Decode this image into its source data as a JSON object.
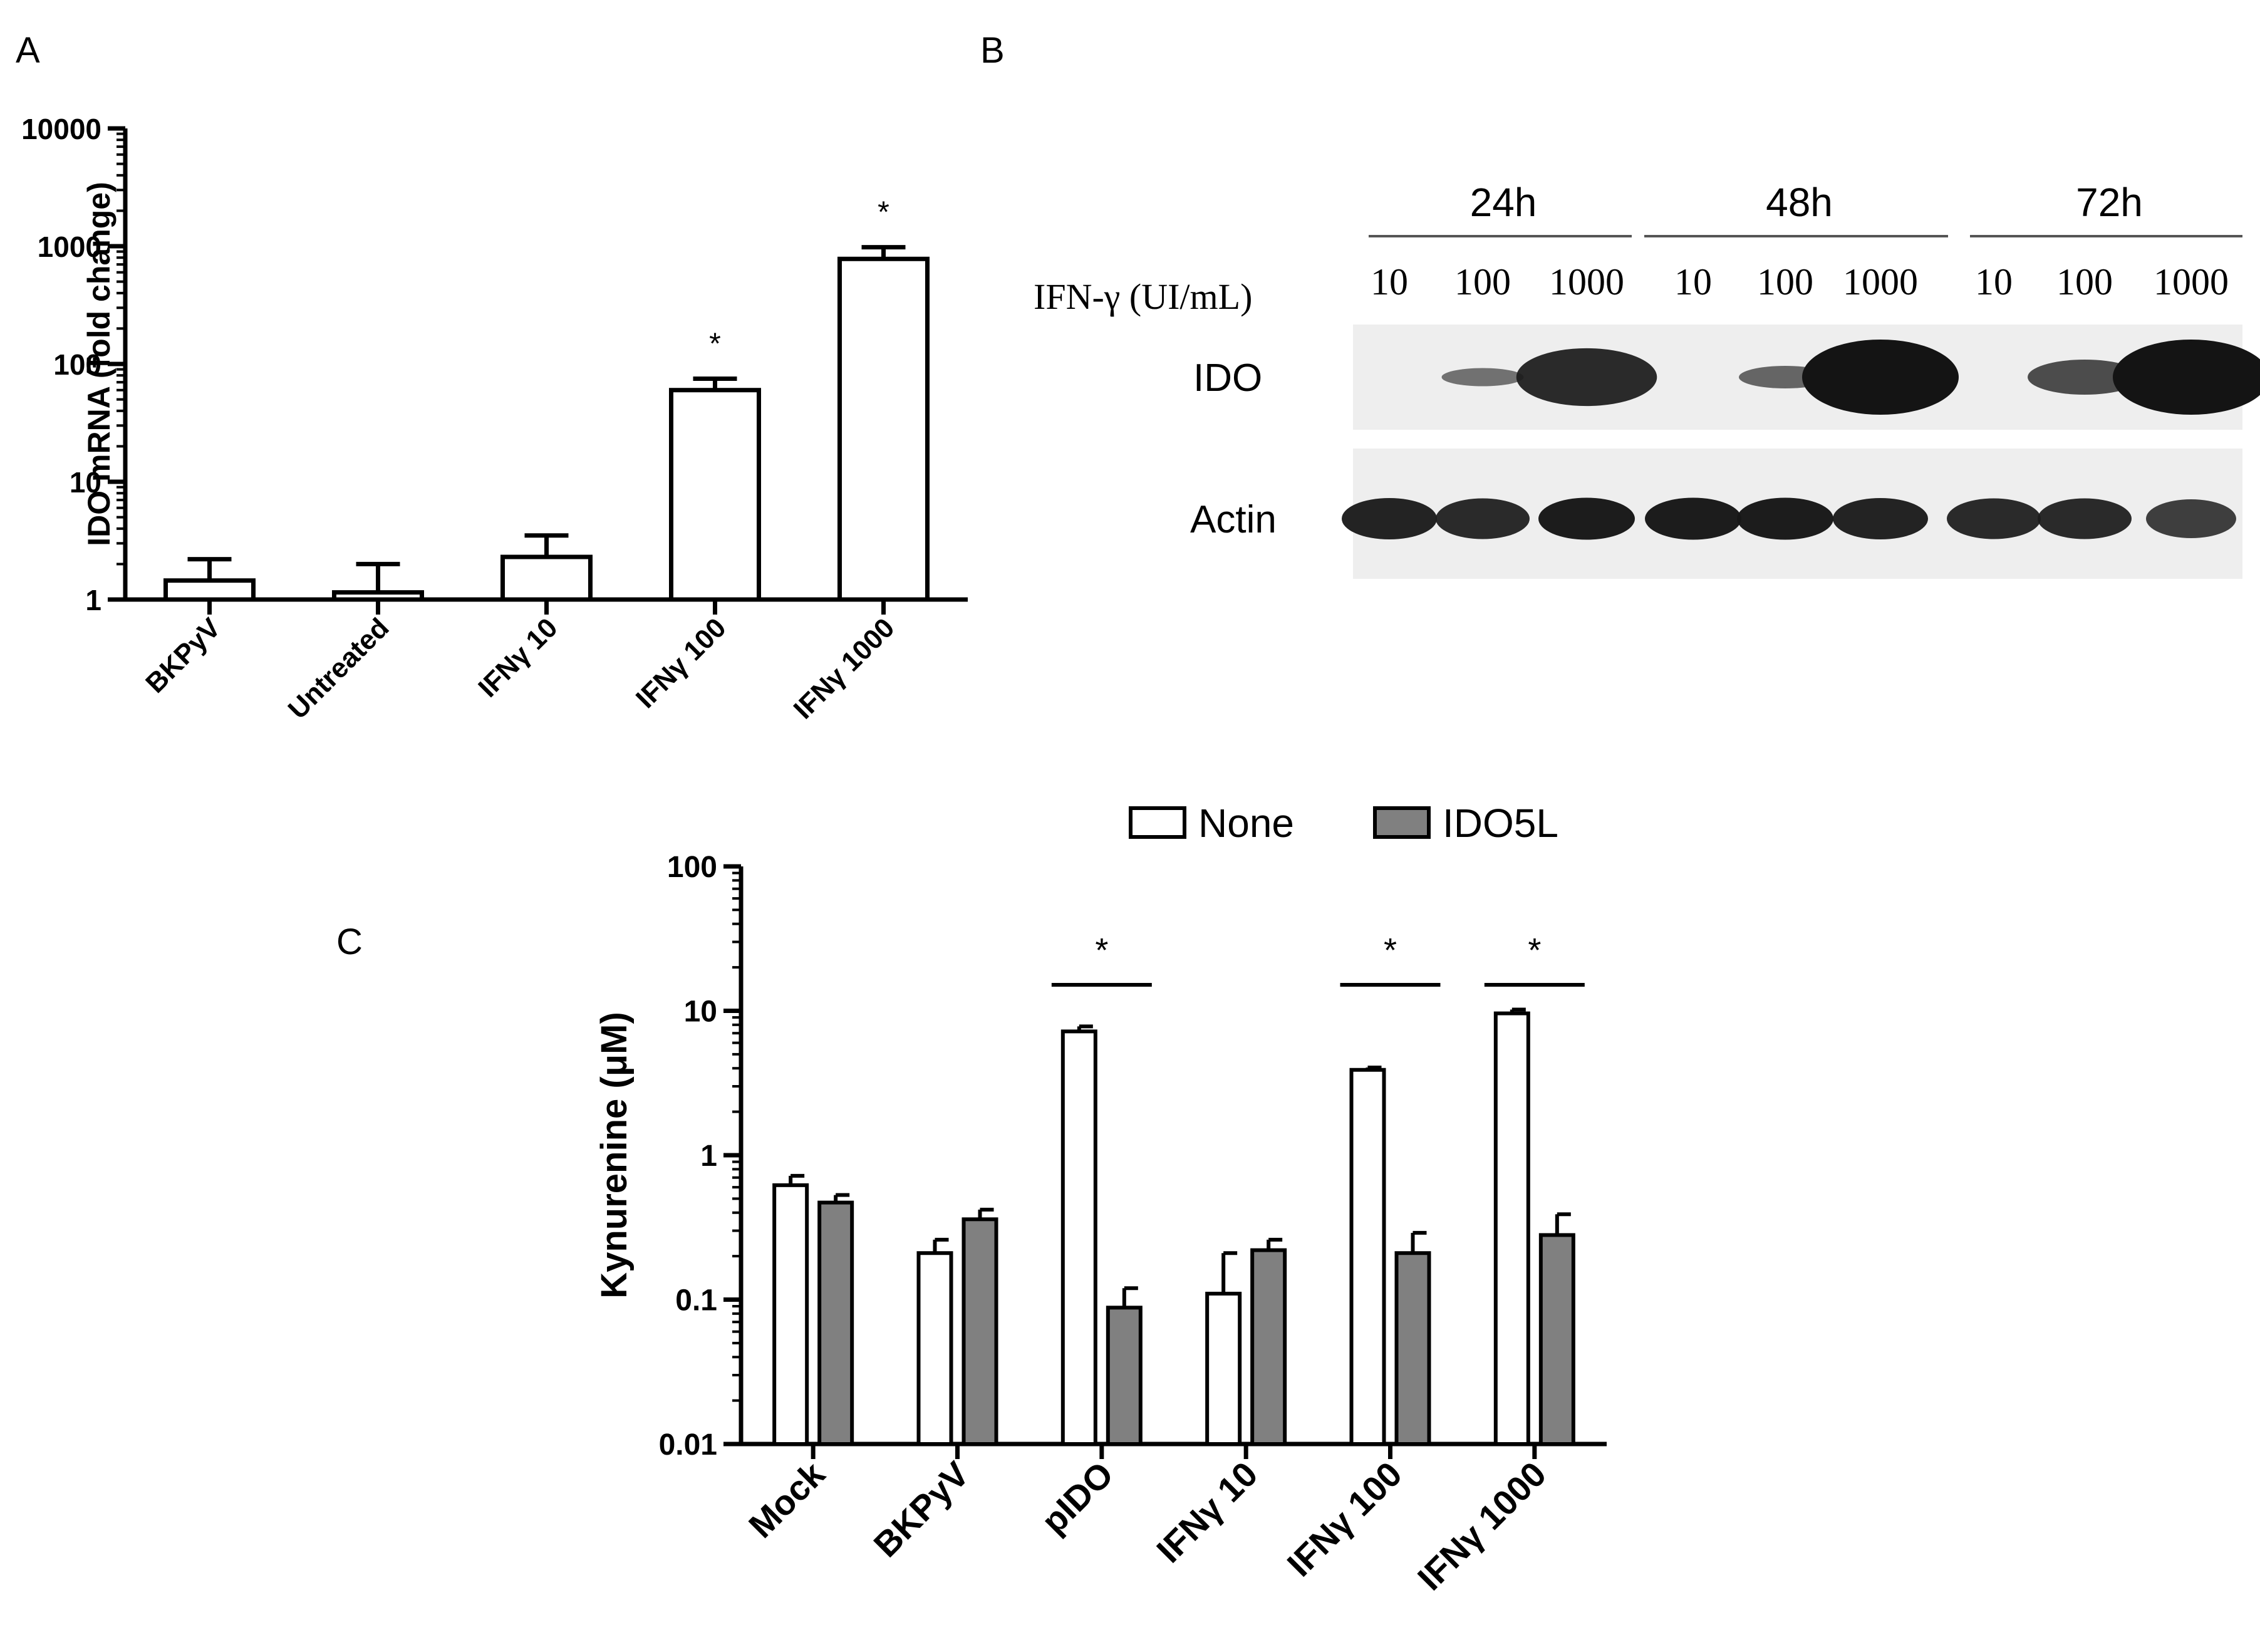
{
  "panel_labels": {
    "a": "A",
    "b": "B",
    "c": "C"
  },
  "chart_data": [
    {
      "panel": "A",
      "type": "bar",
      "scale": "log",
      "ylabel": "IDO mRNA (fold change)",
      "ylim": [
        1,
        10000
      ],
      "yticks": [
        "1",
        "10",
        "100",
        "1000",
        "10000"
      ],
      "categories": [
        "BKPyV",
        "Untreated",
        "IFNγ 10",
        "IFNγ 100",
        "IFNγ 1000"
      ],
      "values": [
        1.45,
        1.15,
        2.3,
        60,
        780
      ],
      "errors_upper": [
        2.2,
        2.0,
        3.5,
        75,
        980
      ],
      "significance": [
        "",
        "",
        "",
        "*",
        "*"
      ]
    },
    {
      "panel": "B",
      "type": "table",
      "treatment_label": "IFN-γ (UI/mL)",
      "timepoints": [
        "24h",
        "48h",
        "72h"
      ],
      "doses": [
        "10",
        "100",
        "1000",
        "10",
        "100",
        "1000",
        "10",
        "100",
        "1000"
      ],
      "rows": [
        {
          "label": "IDO",
          "band_intensity": [
            0,
            0.3,
            0.85,
            0,
            0.4,
            1.0,
            0,
            0.6,
            1.0
          ]
        },
        {
          "label": "Actin",
          "band_intensity": [
            0.9,
            0.85,
            0.95,
            0.95,
            0.95,
            0.9,
            0.85,
            0.85,
            0.7
          ]
        }
      ]
    },
    {
      "panel": "C",
      "type": "bar",
      "scale": "log",
      "ylabel": "Kynurenine (μM)",
      "ylim": [
        0.01,
        100
      ],
      "yticks": [
        "0.01",
        "0.1",
        "1",
        "10",
        "100"
      ],
      "categories": [
        "Mock",
        "BKPyV",
        "pIDO",
        "IFNγ 10",
        "IFNγ 100",
        "IFNγ 1000"
      ],
      "series": [
        {
          "name": "None",
          "color": "#ffffff",
          "values": [
            0.62,
            0.21,
            7.2,
            0.11,
            3.9,
            9.6
          ],
          "errors_upper": [
            0.72,
            0.26,
            7.8,
            0.21,
            4.05,
            10.2
          ]
        },
        {
          "name": "IDO5L",
          "color": "#808080",
          "values": [
            0.47,
            0.36,
            0.088,
            0.22,
            0.21,
            0.28
          ],
          "errors_upper": [
            0.53,
            0.42,
            0.12,
            0.26,
            0.29,
            0.39
          ]
        }
      ],
      "significance": [
        "",
        "",
        "*",
        "",
        "*",
        "*"
      ]
    }
  ]
}
